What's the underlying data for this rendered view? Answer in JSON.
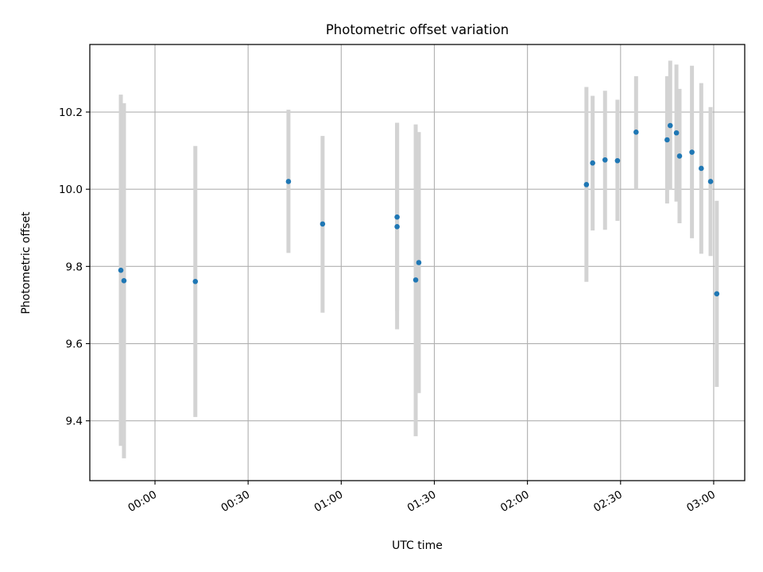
{
  "chart_data": {
    "type": "scatter",
    "title": "Photometric offset variation",
    "xlabel": "UTC time",
    "ylabel": "Photometric offset",
    "x_is_time": true,
    "xlim": [
      "23:39",
      "03:10"
    ],
    "ylim": [
      9.245,
      10.375
    ],
    "x_ticks": [
      "00:00",
      "00:30",
      "01:00",
      "01:30",
      "02:00",
      "02:30",
      "03:00"
    ],
    "y_ticks": [
      9.4,
      9.6,
      9.8,
      10.0,
      10.2
    ],
    "y_tick_labels": [
      "9.4",
      "9.6",
      "9.8",
      "10.0",
      "10.2"
    ],
    "grid": true,
    "marker_color": "#1f77b4",
    "errorbar_color": "#d3d3d3",
    "points": [
      {
        "time": "23:49",
        "y": 9.79,
        "ylow": 9.335,
        "yhigh": 10.245
      },
      {
        "time": "23:50",
        "y": 9.763,
        "ylow": 9.303,
        "yhigh": 10.223
      },
      {
        "time": "00:13",
        "y": 9.761,
        "ylow": 9.41,
        "yhigh": 10.112
      },
      {
        "time": "00:43",
        "y": 10.02,
        "ylow": 9.835,
        "yhigh": 10.206
      },
      {
        "time": "00:54",
        "y": 9.91,
        "ylow": 9.68,
        "yhigh": 10.138
      },
      {
        "time": "01:18",
        "y": 9.903,
        "ylow": 9.637,
        "yhigh": 10.172
      },
      {
        "time": "01:18",
        "y": 9.928,
        "ylow": 9.685,
        "yhigh": 10.172
      },
      {
        "time": "01:24",
        "y": 9.765,
        "ylow": 9.36,
        "yhigh": 10.168
      },
      {
        "time": "01:25",
        "y": 9.81,
        "ylow": 9.472,
        "yhigh": 10.148
      },
      {
        "time": "02:19",
        "y": 10.012,
        "ylow": 9.76,
        "yhigh": 10.265
      },
      {
        "time": "02:21",
        "y": 10.068,
        "ylow": 9.893,
        "yhigh": 10.242
      },
      {
        "time": "02:25",
        "y": 10.076,
        "ylow": 9.895,
        "yhigh": 10.255
      },
      {
        "time": "02:29",
        "y": 10.074,
        "ylow": 9.918,
        "yhigh": 10.232
      },
      {
        "time": "02:35",
        "y": 10.148,
        "ylow": 10.0,
        "yhigh": 10.293
      },
      {
        "time": "02:45",
        "y": 10.128,
        "ylow": 9.963,
        "yhigh": 10.293
      },
      {
        "time": "02:46",
        "y": 10.165,
        "ylow": 9.998,
        "yhigh": 10.333
      },
      {
        "time": "02:48",
        "y": 10.146,
        "ylow": 9.968,
        "yhigh": 10.323
      },
      {
        "time": "02:49",
        "y": 10.086,
        "ylow": 9.912,
        "yhigh": 10.26
      },
      {
        "time": "02:53",
        "y": 10.096,
        "ylow": 9.873,
        "yhigh": 10.32
      },
      {
        "time": "02:56",
        "y": 10.054,
        "ylow": 9.833,
        "yhigh": 10.275
      },
      {
        "time": "02:59",
        "y": 10.02,
        "ylow": 9.827,
        "yhigh": 10.213
      },
      {
        "time": "03:01",
        "y": 9.729,
        "ylow": 9.488,
        "yhigh": 9.97
      }
    ]
  }
}
